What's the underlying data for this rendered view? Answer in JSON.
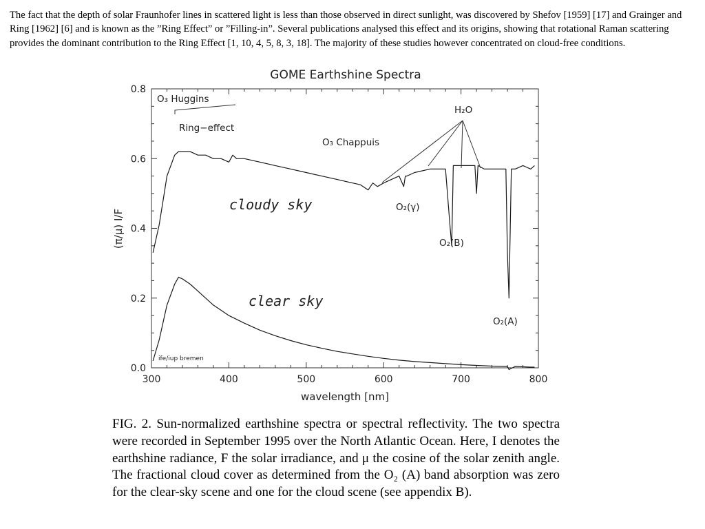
{
  "paper": {
    "intro_text": "The fact that the depth of solar Fraunhofer lines in scattered light is less than those observed in direct sunlight, was discovered by Shefov [1959] [17] and Grainger and Ring [1962] [6] and is known as the ”Ring Effect” or ”Filling-in”. Several publications analysed this effect and its origins, showing that rotational Raman scattering provides the dominant contribution to the Ring Effect [1, 10, 4, 5, 8, 3, 18]. The majority of these studies however concentrated on cloud-free conditions.",
    "caption": {
      "label": "FIG. 2.",
      "text": " Sun-normalized earthshine spectra or spectral reflectivity. The two spectra were recorded in September 1995 over the North Atlantic Ocean. Here, I denotes the earthshine radiance, F the solar irradiance, and μ the cosine of the solar zenith angle. The fractional cloud cover as determined from the O₂ (A) band absorption was zero for the clear-sky scene and one for the cloud scene (see appendix B)."
    }
  },
  "chart_data": {
    "type": "line",
    "title": "GOME Earthshine Spectra",
    "xlabel": "wavelength [nm]",
    "ylabel": "(π/μ) I/F",
    "xlim": [
      300,
      800
    ],
    "ylim": [
      0,
      0.8
    ],
    "xticks": [
      300,
      400,
      500,
      600,
      700,
      800
    ],
    "yticks": [
      "0.0",
      "0.2",
      "0.4",
      "0.6",
      "0.8"
    ],
    "credit": "ife/iup bremen",
    "series": [
      {
        "name": "cloudy sky",
        "x": [
          302,
          310,
          315,
          320,
          325,
          330,
          335,
          340,
          350,
          360,
          370,
          380,
          390,
          400,
          405,
          410,
          420,
          440,
          460,
          480,
          500,
          520,
          540,
          560,
          570,
          580,
          586,
          592,
          600,
          610,
          620,
          626,
          628,
          630,
          640,
          660,
          680,
          686,
          688,
          690,
          700,
          718,
          720,
          722,
          730,
          740,
          750,
          758,
          760,
          762,
          765,
          770,
          780,
          790,
          795
        ],
        "y": [
          0.33,
          0.41,
          0.48,
          0.55,
          0.58,
          0.61,
          0.62,
          0.62,
          0.62,
          0.61,
          0.61,
          0.6,
          0.6,
          0.59,
          0.61,
          0.6,
          0.6,
          0.59,
          0.58,
          0.57,
          0.56,
          0.55,
          0.54,
          0.53,
          0.525,
          0.51,
          0.53,
          0.52,
          0.53,
          0.54,
          0.55,
          0.52,
          0.55,
          0.55,
          0.56,
          0.57,
          0.57,
          0.4,
          0.35,
          0.58,
          0.58,
          0.58,
          0.5,
          0.58,
          0.57,
          0.57,
          0.57,
          0.57,
          0.33,
          0.2,
          0.57,
          0.57,
          0.58,
          0.57,
          0.58
        ]
      },
      {
        "name": "clear sky",
        "x": [
          302,
          310,
          320,
          330,
          335,
          340,
          350,
          360,
          370,
          380,
          390,
          400,
          420,
          440,
          460,
          480,
          500,
          520,
          540,
          560,
          580,
          600,
          620,
          640,
          660,
          680,
          700,
          720,
          740,
          760,
          762,
          770,
          780,
          790,
          795
        ],
        "y": [
          0.02,
          0.08,
          0.18,
          0.24,
          0.26,
          0.255,
          0.24,
          0.22,
          0.2,
          0.18,
          0.165,
          0.15,
          0.128,
          0.108,
          0.092,
          0.078,
          0.066,
          0.056,
          0.047,
          0.04,
          0.033,
          0.027,
          0.022,
          0.018,
          0.015,
          0.012,
          0.009,
          0.007,
          0.005,
          0.004,
          -0.005,
          0.004,
          0.003,
          0.002,
          0.002
        ]
      }
    ],
    "annotations": {
      "o3_huggins": "O₃ Huggins",
      "ring_effect": "Ring−effect",
      "o3_chappuis": "O₃ Chappuis",
      "h2o": "H₂O",
      "o2_gamma": "O₂(γ)",
      "o2_b": "O₂(B)",
      "o2_a": "O₂(A)"
    }
  }
}
